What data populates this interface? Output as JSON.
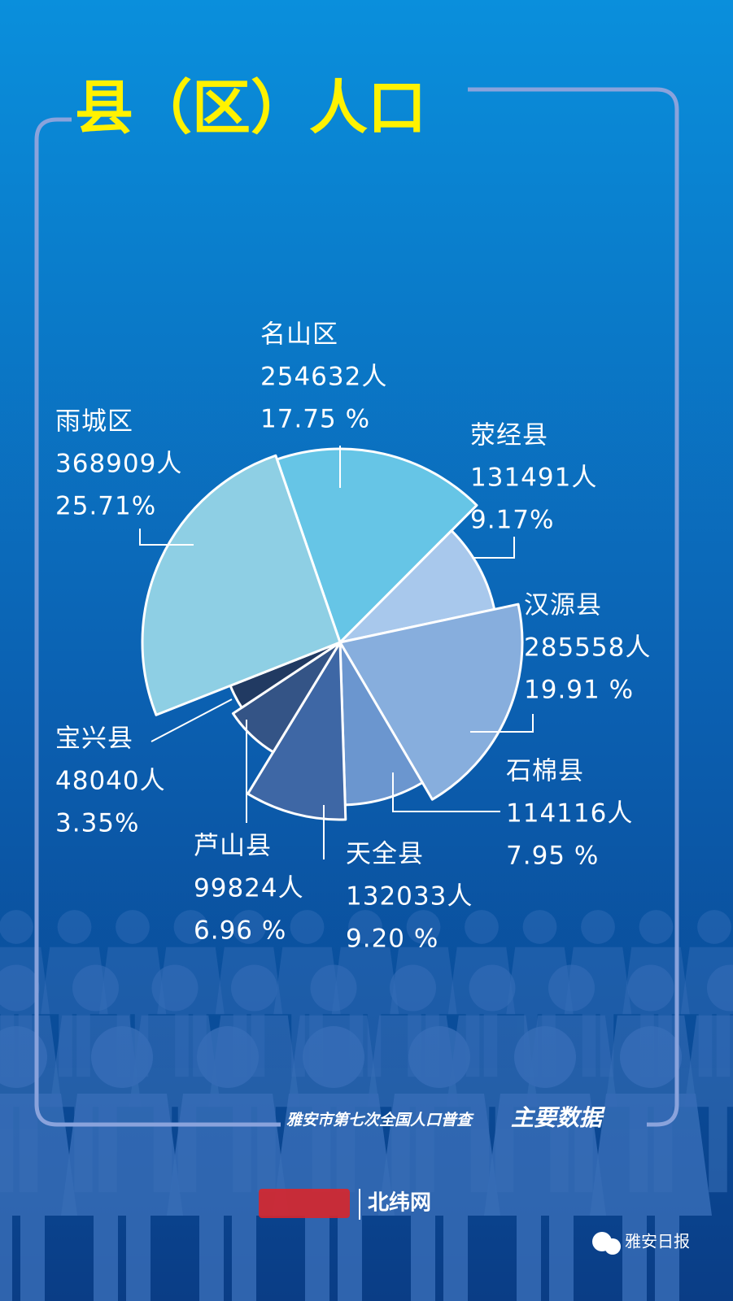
{
  "title": "县（区）人口",
  "chart_data": {
    "type": "pie",
    "categories": [
      "名山区",
      "荥经县",
      "汉源县",
      "石棉县",
      "天全县",
      "芦山县",
      "宝兴县",
      "雨城区"
    ],
    "values": [
      17.75,
      9.17,
      19.91,
      7.95,
      9.2,
      6.96,
      3.35,
      25.71
    ],
    "value_labels": [
      "17.75 %",
      "9.17%",
      "19.91 %",
      "7.95 %",
      "9.20 %",
      "6.96 %",
      "3.35%",
      "25.71%"
    ],
    "counts": [
      254632,
      131491,
      285558,
      114116,
      132033,
      99824,
      48040,
      368909
    ],
    "count_labels": [
      "254632人",
      "131491人",
      "285558人",
      "114116人",
      "132033人",
      "99824人",
      "48040人",
      "368909人"
    ],
    "colors": [
      "#66c5e6",
      "#a8c8ec",
      "#87aedd",
      "#6b96cf",
      "#3e67a5",
      "#345486",
      "#213a62",
      "#8ecfe4"
    ]
  },
  "footer": {
    "subtitle": "雅安市第七次全国人口普查",
    "highlight": "主要数据",
    "logo": "北纬网",
    "source": "雅安日报"
  }
}
